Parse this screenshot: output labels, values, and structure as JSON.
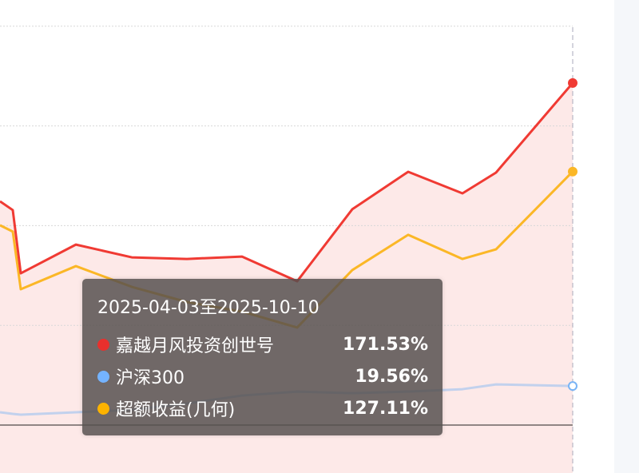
{
  "chart_data": {
    "type": "line",
    "x": [
      0,
      1,
      2,
      3,
      4,
      5,
      6,
      7,
      8,
      9,
      10,
      11,
      12
    ],
    "ylim": [
      -25,
      200
    ],
    "grid": true,
    "series": [
      {
        "name": "嘉越月风投资创世号",
        "color": "#f03a33",
        "area": true,
        "values": [
          112.2,
          107.8,
          76.1,
          90.5,
          84.1,
          83.3,
          84.5,
          72.1,
          108.2,
          127.0,
          116.2,
          126.6,
          171.53
        ]
      },
      {
        "name": "沪深300",
        "color": "#7ab4f5",
        "values": [
          6.4,
          5.6,
          5.2,
          6.4,
          7.6,
          10.8,
          14.8,
          16.8,
          16.0,
          16.8,
          18.0,
          20.4,
          19.56
        ]
      },
      {
        "name": "超额收益(几何)",
        "color": "#fbb726",
        "values": [
          100.2,
          97.0,
          68.1,
          79.7,
          69.3,
          61.7,
          56.9,
          48.9,
          77.7,
          95.4,
          83.3,
          88.1,
          127.11
        ]
      }
    ]
  },
  "tooltip": {
    "title": "2025-04-03至2025-10-10",
    "rows": [
      {
        "name": "嘉越月风投资创世号",
        "value": "171.53%",
        "color": "#e8302d"
      },
      {
        "name": "沪深300",
        "value": "19.56%",
        "color": "#74b3ff"
      },
      {
        "name": "超额收益(几何)",
        "value": "127.11%",
        "color": "#fdb300"
      }
    ]
  }
}
